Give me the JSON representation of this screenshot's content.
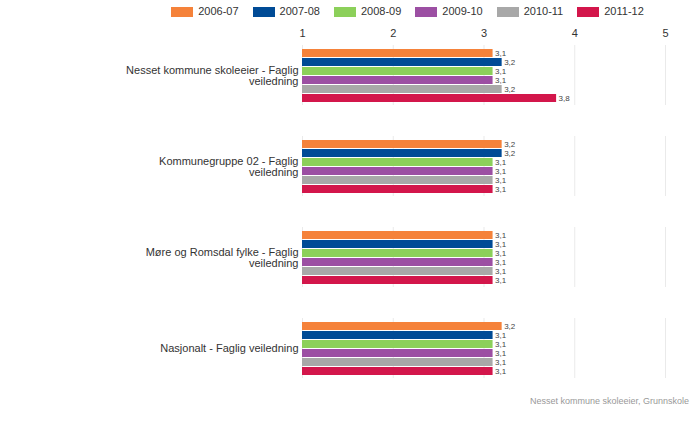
{
  "chart_data": {
    "type": "bar",
    "orientation": "horizontal",
    "caption": "Nesset kommune skoleeier, Grunnskole",
    "categories": [
      "Nesset kommune skoleeier - Faglig veiledning",
      "Kommunegruppe 02 - Faglig veiledning",
      "Møre og Romsdal fylke - Faglig veiledning",
      "Nasjonalt - Faglig veiledning"
    ],
    "series": [
      {
        "name": "2006-07",
        "color": "#f5823a",
        "values": [
          3.1,
          3.2,
          3.1,
          3.2
        ],
        "value_labels": [
          "3,1",
          "3,2",
          "3,1",
          "3,2"
        ]
      },
      {
        "name": "2007-08",
        "color": "#004b96",
        "values": [
          3.2,
          3.2,
          3.1,
          3.1
        ],
        "value_labels": [
          "3,2",
          "3,2",
          "3,1",
          "3,1"
        ]
      },
      {
        "name": "2008-09",
        "color": "#8cd05a",
        "values": [
          3.1,
          3.1,
          3.1,
          3.1
        ],
        "value_labels": [
          "3,1",
          "3,1",
          "3,1",
          "3,1"
        ]
      },
      {
        "name": "2009-10",
        "color": "#9c4fa3",
        "values": [
          3.1,
          3.1,
          3.1,
          3.1
        ],
        "value_labels": [
          "3,1",
          "3,1",
          "3,1",
          "3,1"
        ]
      },
      {
        "name": "2010-11",
        "color": "#a8a8a8",
        "values": [
          3.2,
          3.1,
          3.1,
          3.1
        ],
        "value_labels": [
          "3,2",
          "3,1",
          "3,1",
          "3,1"
        ]
      },
      {
        "name": "2011-12",
        "color": "#d3164b",
        "values": [
          3.8,
          3.1,
          3.1,
          3.1
        ],
        "value_labels": [
          "3,8",
          "3,1",
          "3,1",
          "3,1"
        ]
      }
    ],
    "xlim": [
      1,
      5
    ],
    "xticks": [
      1,
      2,
      3,
      4,
      5
    ],
    "grid": true,
    "data_labels": true,
    "legend": "top"
  }
}
